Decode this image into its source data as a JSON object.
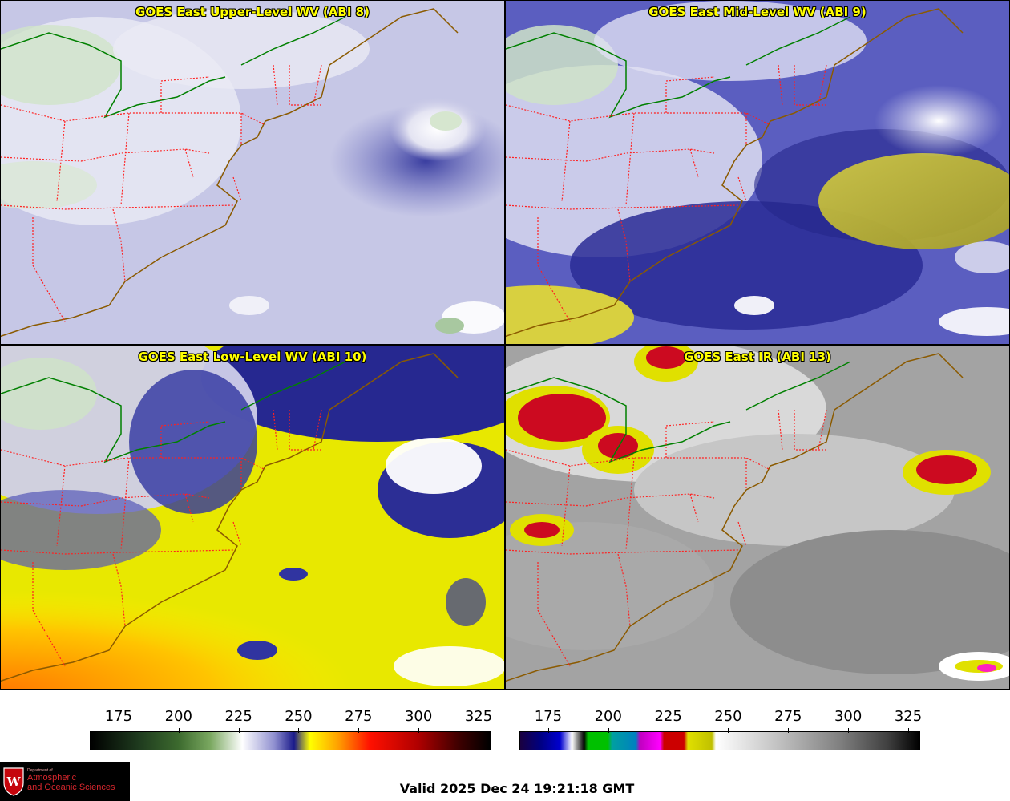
{
  "panels": [
    {
      "title": "GOES East Upper-Level WV (ABI 8)",
      "palette": "upper"
    },
    {
      "title": "GOES East Mid-Level WV (ABI 9)",
      "palette": "mid"
    },
    {
      "title": "GOES East Low-Level WV (ABI 10)",
      "palette": "low"
    },
    {
      "title": "GOES East IR (ABI 13)",
      "palette": "ir"
    }
  ],
  "colorbars": {
    "wv": {
      "ticks": [
        "175",
        "200",
        "225",
        "250",
        "275",
        "300",
        "325"
      ],
      "range": [
        163,
        330
      ]
    },
    "ir": {
      "ticks": [
        "175",
        "200",
        "225",
        "250",
        "275",
        "300",
        "325"
      ],
      "range": [
        163,
        330
      ]
    }
  },
  "logo": {
    "dept": "Department of",
    "line1": "Atmospheric",
    "line2": "and Oceanic Sciences"
  },
  "valid_time": "Valid 2025 Dec 24 19:21:18 GMT",
  "colors": {
    "title_text": "#ffff00",
    "state_borders": "#ff2020",
    "coastline": "#8b5a00",
    "canada_border": "#008000"
  }
}
